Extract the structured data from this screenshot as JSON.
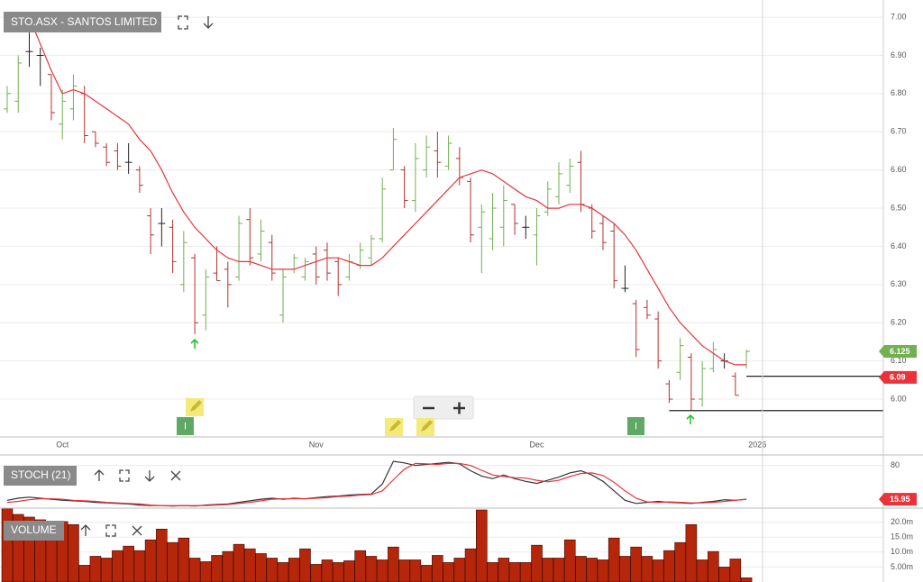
{
  "chart_data": [
    {
      "type": "ohlc",
      "title": "STO.ASX - SANTOS LIMITED",
      "categories": [
        null,
        null,
        null,
        null,
        null,
        "Oct",
        null,
        null,
        null,
        null,
        null,
        null,
        null,
        null,
        null,
        null,
        null,
        null,
        null,
        null,
        null,
        null,
        null,
        null,
        null,
        null,
        null,
        null,
        "Nov",
        null,
        null,
        null,
        null,
        null,
        null,
        null,
        null,
        null,
        null,
        null,
        null,
        null,
        null,
        null,
        null,
        null,
        null,
        null,
        "Dec",
        null,
        null,
        null,
        null,
        null,
        null,
        null,
        null,
        null,
        null,
        null,
        null,
        null,
        null,
        null,
        null,
        null,
        null,
        null,
        "2026"
      ],
      "open": [
        6.76,
        6.78,
        6.91,
        6.9,
        6.85,
        6.72,
        6.76,
        6.8,
        6.7,
        6.66,
        6.65,
        6.62,
        6.6,
        6.48,
        6.46,
        6.45,
        6.3,
        6.37,
        6.22,
        6.33,
        6.34,
        6.32,
        6.47,
        6.38,
        6.41,
        6.22,
        6.34,
        6.32,
        6.38,
        6.39,
        6.36,
        6.32,
        6.35,
        6.37,
        6.42,
        6.6,
        6.6,
        6.52,
        6.6,
        6.65,
        6.61,
        6.63,
        6.57,
        6.45,
        6.42,
        6.45,
        6.51,
        6.45,
        6.43,
        6.49,
        6.53,
        6.56,
        6.62,
        6.5,
        6.46,
        6.44,
        6.29,
        6.25,
        6.24,
        6.21,
        6.04,
        6.07,
        6.11,
        6.0,
        6.08,
        6.1,
        6.06,
        6.09,
        null
      ],
      "high": [
        6.82,
        6.9,
        6.96,
        6.92,
        6.85,
        6.81,
        6.85,
        6.82,
        6.7,
        6.67,
        6.67,
        6.67,
        6.61,
        6.5,
        6.5,
        6.47,
        6.44,
        6.38,
        6.34,
        6.4,
        6.36,
        6.48,
        6.5,
        6.47,
        6.43,
        6.34,
        6.38,
        6.37,
        6.4,
        6.41,
        6.37,
        6.38,
        6.41,
        6.43,
        6.58,
        6.71,
        6.61,
        6.67,
        6.69,
        6.7,
        6.69,
        6.66,
        6.58,
        6.51,
        6.54,
        6.56,
        6.51,
        6.48,
        6.5,
        6.57,
        6.62,
        6.63,
        6.65,
        6.51,
        6.48,
        6.46,
        6.35,
        6.26,
        6.26,
        6.23,
        6.05,
        6.16,
        6.12,
        6.1,
        6.15,
        6.12,
        6.07,
        6.13,
        null
      ],
      "low": [
        6.75,
        6.75,
        6.87,
        6.82,
        6.73,
        6.68,
        6.73,
        6.67,
        6.66,
        6.61,
        6.6,
        6.59,
        6.54,
        6.38,
        6.4,
        6.33,
        6.28,
        6.17,
        6.18,
        6.31,
        6.24,
        6.31,
        6.35,
        6.36,
        6.31,
        6.2,
        6.33,
        6.31,
        6.3,
        6.31,
        6.27,
        6.31,
        6.34,
        6.35,
        6.41,
        6.6,
        6.5,
        6.49,
        6.58,
        6.58,
        6.6,
        6.56,
        6.41,
        6.33,
        6.39,
        6.4,
        6.43,
        6.42,
        6.35,
        6.48,
        6.51,
        6.54,
        6.49,
        6.42,
        6.39,
        6.29,
        6.28,
        6.11,
        6.21,
        6.08,
        5.99,
        6.05,
        5.97,
        5.98,
        6.07,
        6.08,
        6.01,
        6.08,
        null
      ],
      "close": [
        6.8,
        6.88,
        6.91,
        6.9,
        6.75,
        6.78,
        6.82,
        6.69,
        6.67,
        6.62,
        6.61,
        6.62,
        6.56,
        6.43,
        6.46,
        6.36,
        6.41,
        6.2,
        6.32,
        6.31,
        6.3,
        6.46,
        6.37,
        6.44,
        6.33,
        6.32,
        6.37,
        6.36,
        6.32,
        6.33,
        6.3,
        6.36,
        6.39,
        6.42,
        6.55,
        6.68,
        6.52,
        6.63,
        6.66,
        6.62,
        6.67,
        6.58,
        6.43,
        6.49,
        6.5,
        6.52,
        6.46,
        6.45,
        6.48,
        6.55,
        6.59,
        6.61,
        6.51,
        6.44,
        6.41,
        6.31,
        6.29,
        6.13,
        6.22,
        6.1,
        6.0,
        6.14,
        6.0,
        6.08,
        6.13,
        6.1,
        6.01,
        6.125,
        null
      ],
      "ma": {
        "color": "#e8333a",
        "values": [
          null,
          null,
          7.0,
          6.93,
          6.86,
          6.8,
          6.81,
          6.8,
          6.78,
          6.76,
          6.74,
          6.72,
          6.68,
          6.65,
          6.6,
          6.54,
          6.49,
          6.45,
          6.42,
          6.39,
          6.37,
          6.36,
          6.36,
          6.35,
          6.34,
          6.34,
          6.34,
          6.35,
          6.36,
          6.37,
          6.37,
          6.36,
          6.35,
          6.35,
          6.37,
          6.4,
          6.43,
          6.46,
          6.49,
          6.52,
          6.55,
          6.58,
          6.59,
          6.6,
          6.59,
          6.57,
          6.55,
          6.53,
          6.52,
          6.5,
          6.5,
          6.51,
          6.51,
          6.5,
          6.48,
          6.46,
          6.43,
          6.39,
          6.34,
          6.29,
          6.24,
          6.2,
          6.17,
          6.14,
          6.12,
          6.1,
          6.09,
          6.09,
          null
        ]
      },
      "up_color": "#72b050",
      "down_color": "#b3322b",
      "flat_color": "#222222",
      "levels": [
        {
          "value": 6.06,
          "start": 67
        },
        {
          "value": 5.97,
          "start": 60
        }
      ],
      "event_labels": [
        "I",
        "I"
      ],
      "ylim": [
        5.901,
        7.045
      ],
      "yticks": [
        {
          "value": 6,
          "label": "6.00"
        },
        {
          "value": 6.1,
          "label": "6.10"
        },
        {
          "value": 6.2,
          "label": "6.20"
        },
        {
          "value": 6.3,
          "label": "6.30"
        },
        {
          "value": 6.4,
          "label": "6.40"
        },
        {
          "value": 6.5,
          "label": "6.50"
        },
        {
          "value": 6.6,
          "label": "6.60"
        },
        {
          "value": 6.7,
          "label": "6.70"
        },
        {
          "value": 6.8,
          "label": "6.80"
        },
        {
          "value": 6.9,
          "label": "6.90"
        },
        {
          "value": 7,
          "label": "7.00"
        }
      ],
      "grid": true
    },
    {
      "type": "line",
      "title": "STOCH (21)",
      "series": [
        {
          "color": "#333333",
          "values": [
            14,
            18,
            20,
            18,
            16,
            14,
            13,
            12,
            10,
            9,
            8,
            7,
            5,
            4,
            4,
            3,
            4,
            3,
            5,
            6,
            7,
            10,
            13,
            16,
            18,
            16,
            18,
            17,
            19,
            21,
            22,
            24,
            25,
            26,
            45,
            88,
            85,
            80,
            82,
            84,
            86,
            83,
            70,
            60,
            55,
            62,
            55,
            50,
            46,
            52,
            58,
            66,
            70,
            62,
            50,
            32,
            14,
            8,
            10,
            12,
            10,
            9,
            8,
            10,
            12,
            15,
            14,
            16
          ]
        },
        {
          "color": "#e8333a",
          "values": [
            10,
            12,
            15,
            17,
            17,
            16,
            14,
            13,
            12,
            10,
            9,
            8,
            7,
            5,
            4,
            4,
            4,
            4,
            4,
            5,
            6,
            8,
            10,
            13,
            16,
            17,
            17,
            17,
            18,
            19,
            21,
            22,
            24,
            25,
            32,
            53,
            73,
            84,
            83,
            82,
            84,
            84,
            80,
            71,
            62,
            59,
            57,
            56,
            52,
            49,
            52,
            59,
            65,
            66,
            61,
            48,
            32,
            18,
            11,
            10,
            11,
            10,
            9,
            9,
            10,
            12,
            14,
            15.95
          ]
        }
      ],
      "ylim": [
        0,
        100
      ],
      "yticks": [
        80
      ],
      "grid": true
    },
    {
      "type": "bar",
      "title": "VOLUME",
      "color": "#b5260b",
      "values": [
        24.7,
        22.6,
        21.7,
        20.8,
        18.6,
        20.2,
        19.2,
        5.6,
        8.6,
        8.0,
        10.5,
        12.0,
        10.5,
        14.1,
        17.7,
        13.2,
        14.7,
        8.0,
        6.8,
        8.9,
        10.2,
        12.6,
        11.1,
        9.5,
        8.0,
        6.5,
        8.0,
        11.1,
        5.9,
        7.4,
        6.5,
        7.1,
        10.5,
        8.6,
        7.4,
        11.7,
        7.4,
        7.4,
        5.6,
        8.9,
        6.5,
        8.0,
        11.1,
        24.1,
        6.5,
        8.0,
        6.5,
        6.5,
        12.3,
        8.0,
        8.0,
        14.1,
        8.6,
        8.0,
        7.4,
        14.7,
        8.6,
        11.7,
        8.6,
        7.4,
        10.5,
        13.2,
        19.2,
        7.4,
        10.2,
        5.0,
        7.7,
        1.4
      ],
      "ylim": [
        0,
        24.7
      ],
      "yticks": [
        {
          "value": 5,
          "label": "5.00m"
        },
        {
          "value": 10,
          "label": "10.0m"
        },
        {
          "value": 15,
          "label": "15.0m"
        },
        {
          "value": 20,
          "label": "20.0m"
        }
      ],
      "grid": true
    }
  ]
}
